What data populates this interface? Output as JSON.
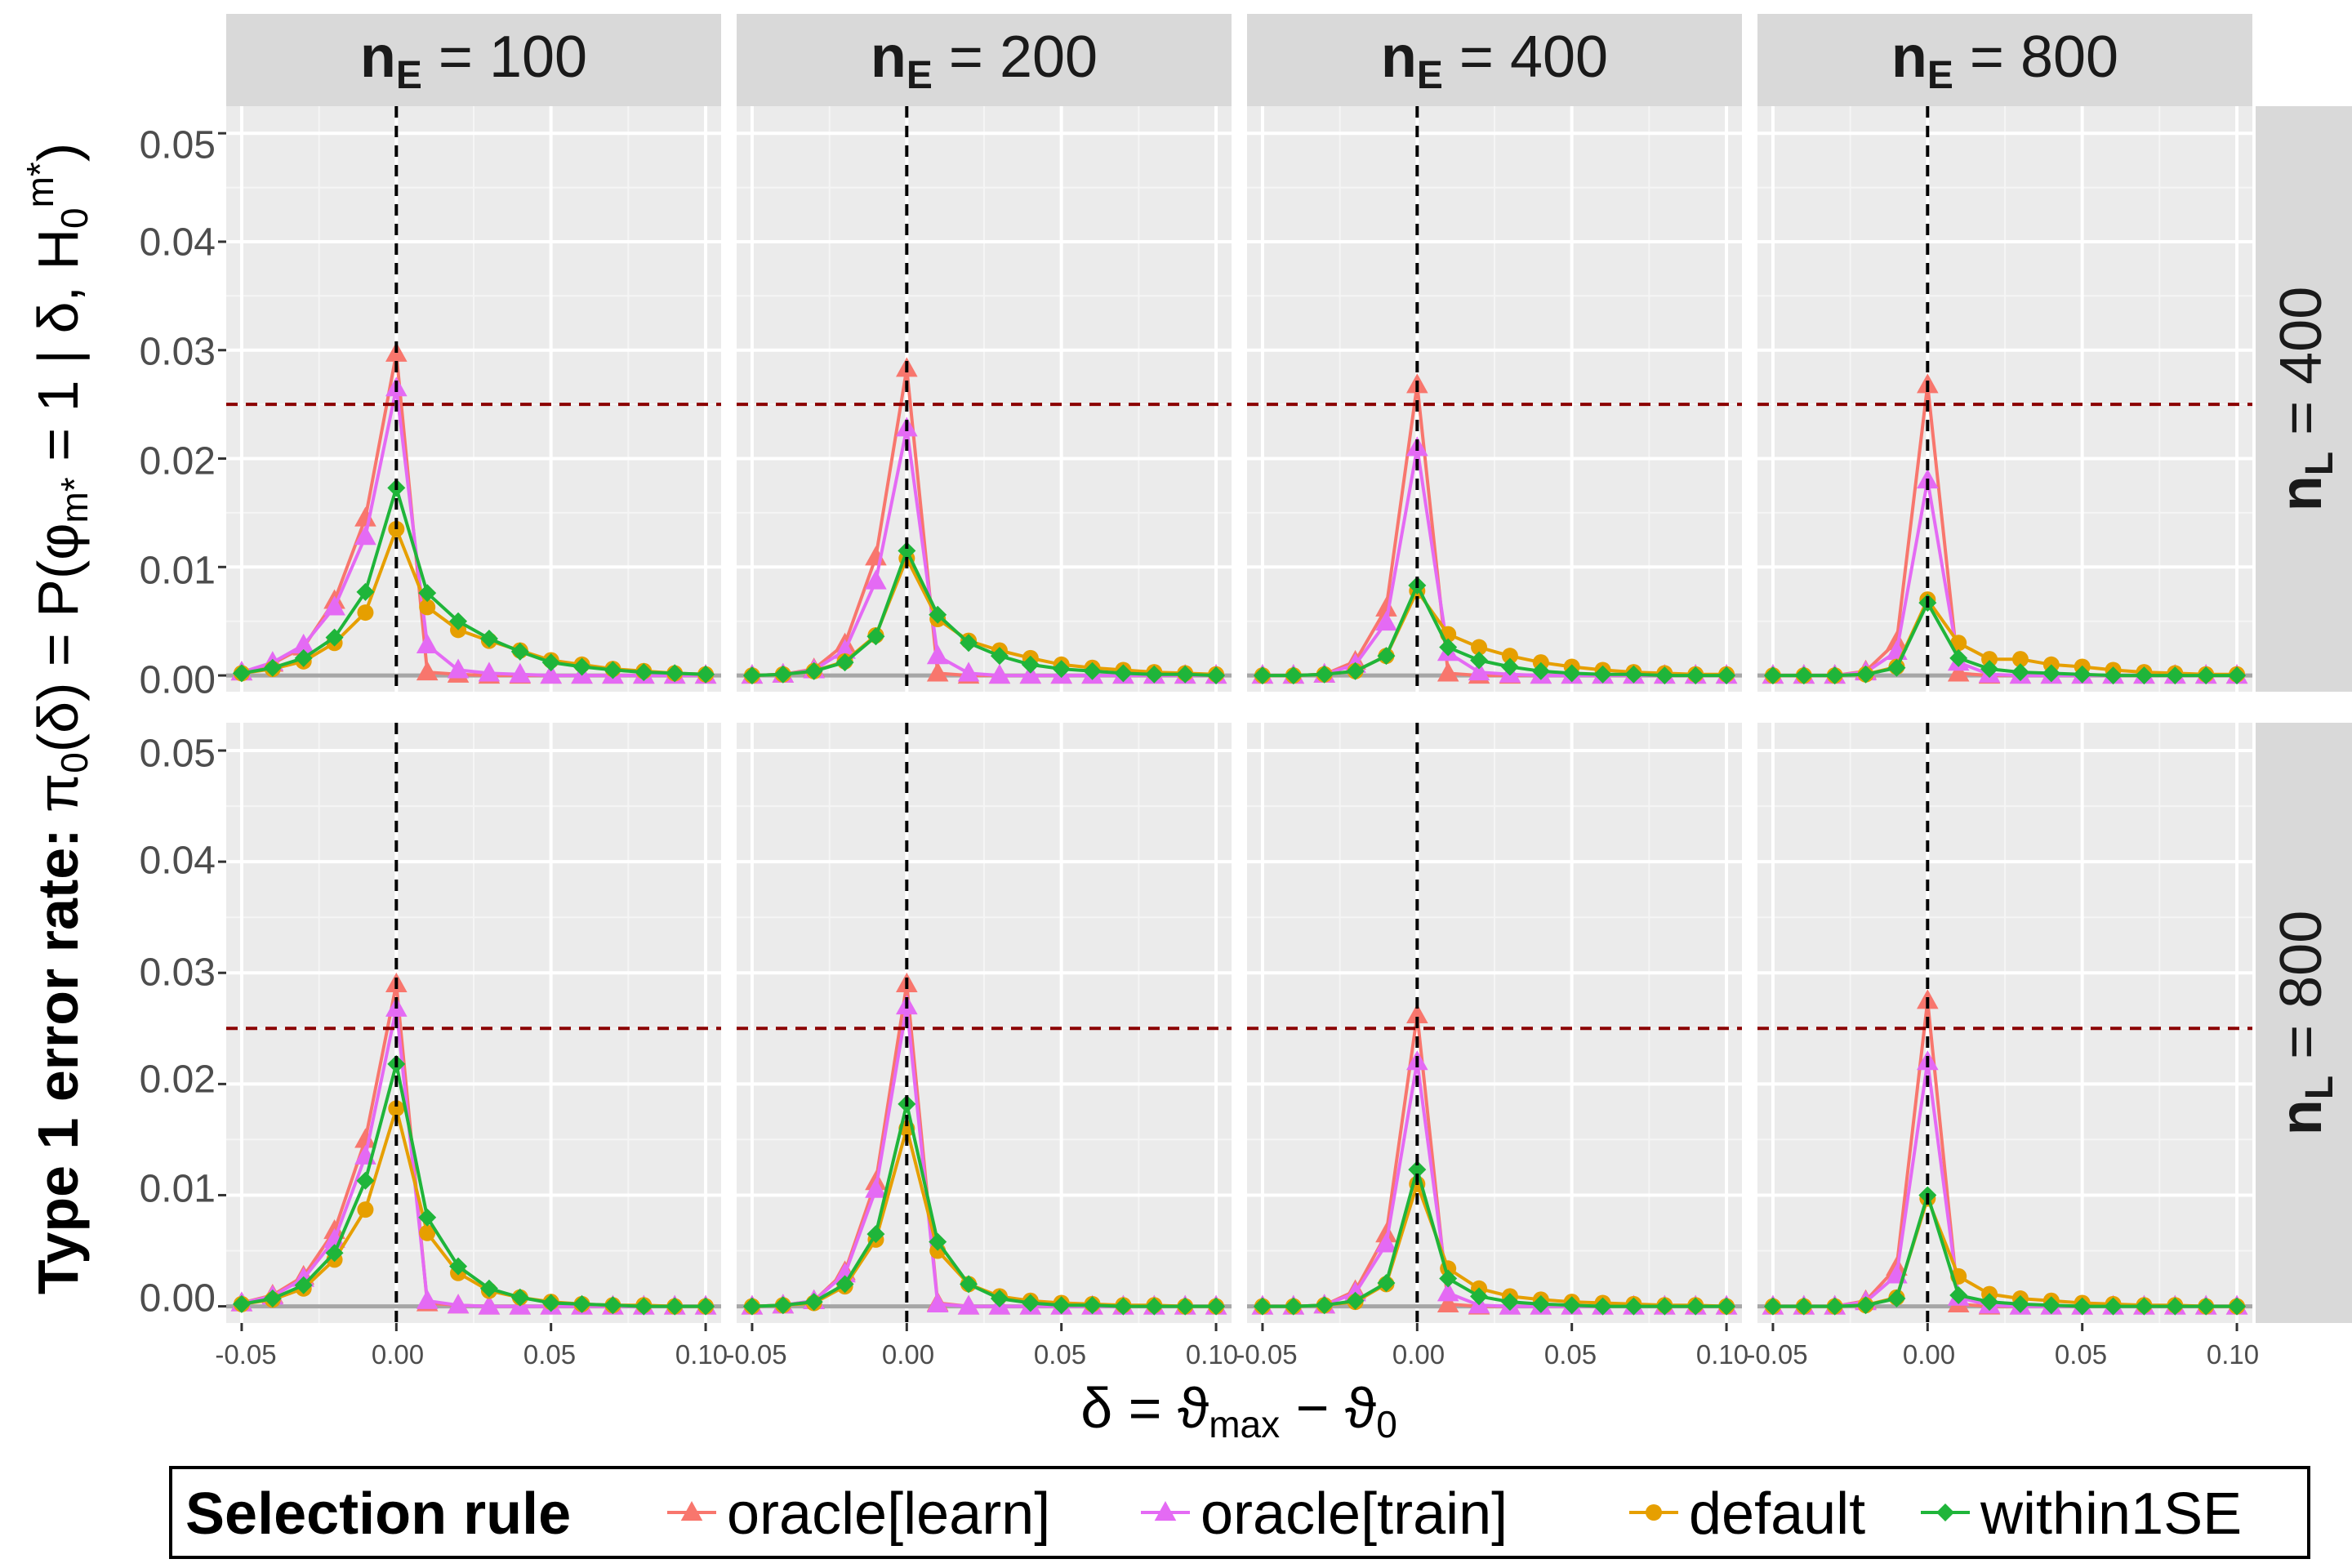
{
  "chart_data": {
    "type": "line",
    "title": "",
    "facet_columns": [
      "n_E = 100",
      "n_E = 200",
      "n_E = 400",
      "n_E = 800"
    ],
    "facet_rows": [
      "n_L = 400",
      "n_L = 800"
    ],
    "xlabel": "δ = ϑmax − ϑ0",
    "ylabel": "Type 1 error rate: π0(δ) = P(φm* = 1 | δ, H0m*)",
    "xlim": [
      -0.055,
      0.105
    ],
    "ylim": [
      -0.0015,
      0.0525
    ],
    "xticks": [
      "-0.05",
      "0.00",
      "0.05",
      "0.10"
    ],
    "yticks": [
      "0.00",
      "0.01",
      "0.02",
      "0.03",
      "0.04",
      "0.05"
    ],
    "x": [
      -0.05,
      -0.04,
      -0.03,
      -0.02,
      -0.01,
      0.0,
      0.01,
      0.02,
      0.03,
      0.04,
      0.05,
      0.06,
      0.07,
      0.08,
      0.09,
      0.1
    ],
    "reference_lines": {
      "vertical_x": 0.0,
      "horizontal_y": 0.025,
      "zero_y": 0.0
    },
    "legend": {
      "title": "Selection rule",
      "position": "bottom"
    },
    "series_styles": [
      {
        "name": "oracle[learn]",
        "color": "#F8766D",
        "shape": "triangle"
      },
      {
        "name": "oracle[train]",
        "color": "#E46AF4",
        "shape": "triangle"
      },
      {
        "name": "default",
        "color": "#E69F00",
        "shape": "circle"
      },
      {
        "name": "within1SE",
        "color": "#1FB53A",
        "shape": "diamond"
      }
    ],
    "panels": [
      {
        "row": 0,
        "col": 0,
        "series": [
          {
            "name": "oracle[learn]",
            "values": [
              0.0003,
              0.0011,
              0.0026,
              0.0069,
              0.0145,
              0.0297,
              0.0003,
              0.0001,
              0.0,
              0.0,
              0.0,
              0.0,
              0.0,
              0.0,
              0.0,
              0.0
            ]
          },
          {
            "name": "oracle[train]",
            "values": [
              0.0003,
              0.0012,
              0.0028,
              0.0063,
              0.0128,
              0.0265,
              0.0028,
              0.0005,
              0.0002,
              0.0001,
              0.0,
              0.0,
              0.0,
              0.0,
              0.0,
              0.0
            ]
          },
          {
            "name": "default",
            "values": [
              0.0002,
              0.0006,
              0.0013,
              0.003,
              0.0058,
              0.0135,
              0.0063,
              0.0042,
              0.0032,
              0.0023,
              0.0014,
              0.001,
              0.0006,
              0.0004,
              0.0002,
              0.0001
            ]
          },
          {
            "name": "within1SE",
            "values": [
              0.0002,
              0.0007,
              0.0016,
              0.0035,
              0.0077,
              0.0173,
              0.0076,
              0.005,
              0.0034,
              0.0022,
              0.0012,
              0.0008,
              0.0005,
              0.0003,
              0.0002,
              0.0001
            ]
          }
        ]
      },
      {
        "row": 0,
        "col": 1,
        "series": [
          {
            "name": "oracle[learn]",
            "values": [
              0.0,
              0.0001,
              0.0006,
              0.0029,
              0.0109,
              0.0283,
              0.0002,
              0.0,
              0.0,
              0.0,
              0.0,
              0.0,
              0.0,
              0.0,
              0.0,
              0.0
            ]
          },
          {
            "name": "oracle[train]",
            "values": [
              0.0,
              0.0001,
              0.0005,
              0.0023,
              0.0087,
              0.0228,
              0.0018,
              0.0002,
              0.0,
              0.0,
              0.0,
              0.0,
              0.0,
              0.0,
              0.0,
              0.0
            ]
          },
          {
            "name": "default",
            "values": [
              0.0,
              0.0001,
              0.0004,
              0.0013,
              0.0037,
              0.0108,
              0.0052,
              0.0032,
              0.0023,
              0.0016,
              0.001,
              0.0007,
              0.0005,
              0.0003,
              0.0002,
              0.0001
            ]
          },
          {
            "name": "within1SE",
            "values": [
              0.0,
              0.0001,
              0.0004,
              0.0012,
              0.0036,
              0.0115,
              0.0056,
              0.003,
              0.0018,
              0.001,
              0.0006,
              0.0004,
              0.0002,
              0.0001,
              0.0001,
              0.0
            ]
          }
        ]
      },
      {
        "row": 0,
        "col": 2,
        "series": [
          {
            "name": "oracle[learn]",
            "values": [
              0.0,
              0.0,
              0.0001,
              0.0013,
              0.0062,
              0.0268,
              0.0002,
              0.0,
              0.0,
              0.0,
              0.0,
              0.0,
              0.0,
              0.0,
              0.0,
              0.0
            ]
          },
          {
            "name": "oracle[train]",
            "values": [
              0.0,
              0.0,
              0.0001,
              0.001,
              0.0049,
              0.021,
              0.0021,
              0.0003,
              0.0001,
              0.0,
              0.0,
              0.0,
              0.0,
              0.0,
              0.0,
              0.0
            ]
          },
          {
            "name": "default",
            "values": [
              0.0,
              0.0,
              0.0001,
              0.0004,
              0.0018,
              0.0078,
              0.0038,
              0.0026,
              0.0018,
              0.0012,
              0.0008,
              0.0005,
              0.0003,
              0.0002,
              0.0001,
              0.0001
            ]
          },
          {
            "name": "within1SE",
            "values": [
              0.0,
              0.0,
              0.0001,
              0.0004,
              0.0018,
              0.0083,
              0.0026,
              0.0014,
              0.0008,
              0.0004,
              0.0002,
              0.0001,
              0.0001,
              0.0,
              0.0,
              0.0
            ]
          }
        ]
      },
      {
        "row": 0,
        "col": 3,
        "series": [
          {
            "name": "oracle[learn]",
            "values": [
              0.0,
              0.0,
              0.0,
              0.0004,
              0.0031,
              0.0268,
              0.0002,
              0.0,
              0.0,
              0.0,
              0.0,
              0.0,
              0.0,
              0.0,
              0.0,
              0.0
            ]
          },
          {
            "name": "oracle[train]",
            "values": [
              0.0,
              0.0,
              0.0,
              0.0003,
              0.0022,
              0.018,
              0.0012,
              0.0001,
              0.0,
              0.0,
              0.0,
              0.0,
              0.0,
              0.0,
              0.0,
              0.0
            ]
          },
          {
            "name": "default",
            "values": [
              0.0,
              0.0,
              0.0,
              0.0001,
              0.0008,
              0.007,
              0.003,
              0.0015,
              0.0015,
              0.001,
              0.0008,
              0.0005,
              0.0003,
              0.0002,
              0.0001,
              0.0001
            ]
          },
          {
            "name": "within1SE",
            "values": [
              0.0,
              0.0,
              0.0,
              0.0001,
              0.0007,
              0.0067,
              0.0016,
              0.0006,
              0.0003,
              0.0002,
              0.0001,
              0.0,
              0.0,
              0.0,
              0.0,
              0.0
            ]
          }
        ]
      },
      {
        "row": 1,
        "col": 0,
        "series": [
          {
            "name": "oracle[learn]",
            "values": [
              0.0003,
              0.001,
              0.0027,
              0.0068,
              0.015,
              0.029,
              0.0003,
              0.0001,
              0.0,
              0.0,
              0.0,
              0.0,
              0.0,
              0.0,
              0.0,
              0.0
            ]
          },
          {
            "name": "oracle[train]",
            "values": [
              0.0003,
              0.0009,
              0.0025,
              0.006,
              0.0135,
              0.0268,
              0.0005,
              0.0001,
              0.0,
              0.0,
              0.0,
              0.0,
              0.0,
              0.0,
              0.0,
              0.0
            ]
          },
          {
            "name": "default",
            "values": [
              0.0002,
              0.0006,
              0.0016,
              0.0042,
              0.0087,
              0.0178,
              0.0066,
              0.003,
              0.0014,
              0.0008,
              0.0004,
              0.0002,
              0.0001,
              0.0001,
              0.0,
              0.0
            ]
          },
          {
            "name": "within1SE",
            "values": [
              0.0002,
              0.0007,
              0.0019,
              0.0048,
              0.0113,
              0.0218,
              0.008,
              0.0036,
              0.0016,
              0.0008,
              0.0003,
              0.0002,
              0.0001,
              0.0,
              0.0,
              0.0
            ]
          }
        ]
      },
      {
        "row": 1,
        "col": 1,
        "series": [
          {
            "name": "oracle[learn]",
            "values": [
              0.0,
              0.0001,
              0.0005,
              0.0031,
              0.0112,
              0.029,
              0.0003,
              0.0,
              0.0,
              0.0,
              0.0,
              0.0,
              0.0,
              0.0,
              0.0,
              0.0
            ]
          },
          {
            "name": "oracle[train]",
            "values": [
              0.0,
              0.0001,
              0.0005,
              0.0029,
              0.0105,
              0.027,
              0.0002,
              0.0,
              0.0,
              0.0,
              0.0,
              0.0,
              0.0,
              0.0,
              0.0,
              0.0
            ]
          },
          {
            "name": "default",
            "values": [
              0.0,
              0.0001,
              0.0003,
              0.0018,
              0.006,
              0.016,
              0.005,
              0.002,
              0.0009,
              0.0005,
              0.0003,
              0.0002,
              0.0001,
              0.0001,
              0.0,
              0.0
            ]
          },
          {
            "name": "within1SE",
            "values": [
              0.0,
              0.0001,
              0.0004,
              0.002,
              0.0065,
              0.0182,
              0.0058,
              0.002,
              0.0007,
              0.0003,
              0.0001,
              0.0001,
              0.0,
              0.0,
              0.0,
              0.0
            ]
          }
        ]
      },
      {
        "row": 1,
        "col": 2,
        "series": [
          {
            "name": "oracle[learn]",
            "values": [
              0.0,
              0.0,
              0.0001,
              0.0014,
              0.0065,
              0.0262,
              0.0002,
              0.0,
              0.0,
              0.0,
              0.0,
              0.0,
              0.0,
              0.0,
              0.0,
              0.0
            ]
          },
          {
            "name": "oracle[train]",
            "values": [
              0.0,
              0.0,
              0.0001,
              0.0012,
              0.0056,
              0.022,
              0.0012,
              0.0001,
              0.0,
              0.0,
              0.0,
              0.0,
              0.0,
              0.0,
              0.0,
              0.0
            ]
          },
          {
            "name": "default",
            "values": [
              0.0,
              0.0,
              0.0001,
              0.0004,
              0.002,
              0.011,
              0.0034,
              0.0016,
              0.0009,
              0.0006,
              0.0004,
              0.0003,
              0.0002,
              0.0001,
              0.0001,
              0.0
            ]
          },
          {
            "name": "within1SE",
            "values": [
              0.0,
              0.0,
              0.0001,
              0.0005,
              0.0021,
              0.0123,
              0.0025,
              0.0009,
              0.0004,
              0.0002,
              0.0001,
              0.0,
              0.0,
              0.0,
              0.0,
              0.0
            ]
          }
        ]
      },
      {
        "row": 1,
        "col": 3,
        "series": [
          {
            "name": "oracle[learn]",
            "values": [
              0.0,
              0.0,
              0.0,
              0.0005,
              0.0035,
              0.0275,
              0.0002,
              0.0,
              0.0,
              0.0,
              0.0,
              0.0,
              0.0,
              0.0,
              0.0,
              0.0
            ]
          },
          {
            "name": "oracle[train]",
            "values": [
              0.0,
              0.0,
              0.0,
              0.0004,
              0.0028,
              0.022,
              0.0008,
              0.0001,
              0.0,
              0.0,
              0.0,
              0.0,
              0.0,
              0.0,
              0.0,
              0.0
            ]
          },
          {
            "name": "default",
            "values": [
              0.0,
              0.0,
              0.0,
              0.0001,
              0.0008,
              0.0097,
              0.0027,
              0.0011,
              0.0007,
              0.0005,
              0.0003,
              0.0002,
              0.0001,
              0.0001,
              0.0,
              0.0
            ]
          },
          {
            "name": "within1SE",
            "values": [
              0.0,
              0.0,
              0.0,
              0.0001,
              0.0007,
              0.01,
              0.001,
              0.0004,
              0.0002,
              0.0001,
              0.0,
              0.0,
              0.0,
              0.0,
              0.0,
              0.0
            ]
          }
        ]
      }
    ]
  }
}
